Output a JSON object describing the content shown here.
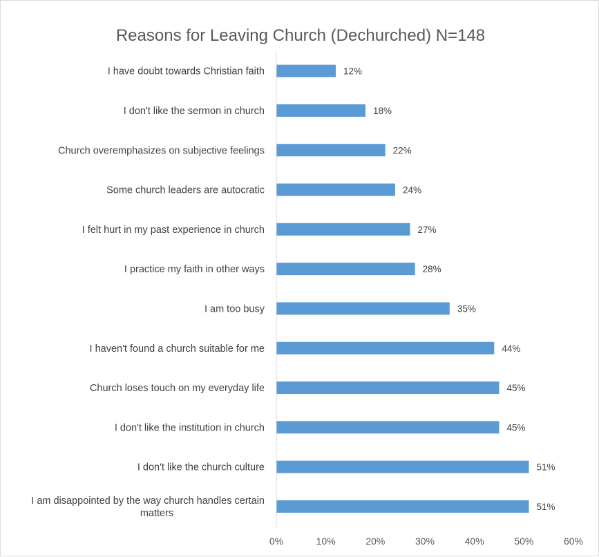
{
  "chart_data": {
    "type": "bar",
    "orientation": "horizontal",
    "title": "Reasons for Leaving Church (Dechurched) N=148",
    "xlabel": "",
    "ylabel": "",
    "xlim": [
      0,
      60
    ],
    "x_tick_values": [
      0,
      10,
      20,
      30,
      40,
      50,
      60
    ],
    "x_tick_labels": [
      "0%",
      "10%",
      "20%",
      "30%",
      "40%",
      "50%",
      "60%"
    ],
    "grid": false,
    "legend": "none",
    "bar_color": "#5b9bd5",
    "categories": [
      "I have doubt towards Christian faith",
      "I don't like the sermon in church",
      "Church overemphasizes on subjective feelings",
      "Some church leaders are autocratic",
      "I felt hurt in my past experience in church",
      "I practice my faith in other ways",
      "I am too busy",
      "I haven't found a church suitable for me",
      "Church loses touch on my everyday life",
      "I don't like the institution in church",
      "I don't like the church culture",
      "I am disappointed by the way church handles certain matters"
    ],
    "category_lines": [
      [
        "I have doubt towards Christian faith"
      ],
      [
        "I don't like the sermon in church"
      ],
      [
        "Church overemphasizes on subjective feelings"
      ],
      [
        "Some church leaders are autocratic"
      ],
      [
        "I felt hurt in my past experience in church"
      ],
      [
        "I practice my faith in other ways"
      ],
      [
        "I am too busy"
      ],
      [
        "I haven't found a church suitable for me"
      ],
      [
        "Church loses touch on my everyday life"
      ],
      [
        "I don't like the institution in church"
      ],
      [
        "I don't like the church culture"
      ],
      [
        "I am disappointed by the way church handles certain",
        "matters"
      ]
    ],
    "values": [
      12,
      18,
      22,
      24,
      27,
      28,
      35,
      44,
      45,
      45,
      51,
      51
    ],
    "value_labels": [
      "12%",
      "18%",
      "22%",
      "24%",
      "27%",
      "28%",
      "35%",
      "44%",
      "45%",
      "45%",
      "51%",
      "51%"
    ]
  }
}
